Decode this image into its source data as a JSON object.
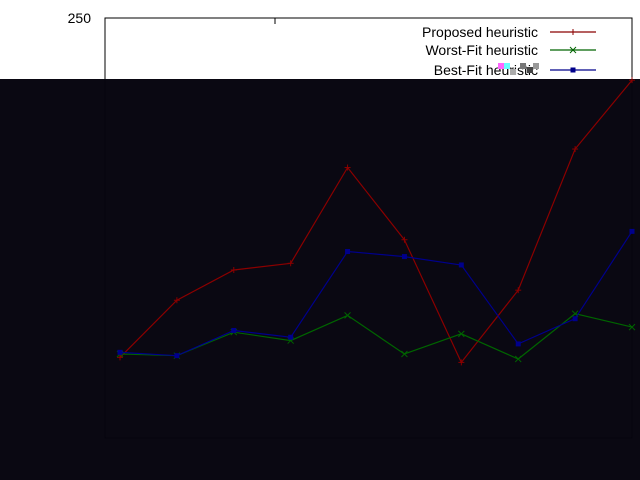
{
  "chart_data": {
    "type": "line",
    "title": "",
    "xlabel": "",
    "ylabel": "",
    "y_tick_labels": [
      "250"
    ],
    "x": [
      1,
      2,
      3,
      4,
      5,
      6,
      7,
      8,
      9,
      10
    ],
    "ylim": [
      0,
      250
    ],
    "grid": false,
    "legend_position": "top-right",
    "series": [
      {
        "name": "Proposed heuristic",
        "color": "#8b0000",
        "marker": "plus",
        "values": [
          48,
          82,
          100,
          104,
          161,
          118,
          45,
          88,
          172,
          213
        ]
      },
      {
        "name": "Worst-Fit heuristic",
        "color": "#006400",
        "marker": "cross",
        "values": [
          50,
          49,
          63,
          58,
          73,
          50,
          62,
          47,
          74,
          66
        ]
      },
      {
        "name": "Best-Fit heuristic",
        "color": "#00008b",
        "marker": "square",
        "values": [
          51,
          49,
          64,
          60,
          111,
          108,
          103,
          56,
          71,
          123
        ]
      }
    ]
  },
  "overlay": {
    "color": "#05030d"
  }
}
